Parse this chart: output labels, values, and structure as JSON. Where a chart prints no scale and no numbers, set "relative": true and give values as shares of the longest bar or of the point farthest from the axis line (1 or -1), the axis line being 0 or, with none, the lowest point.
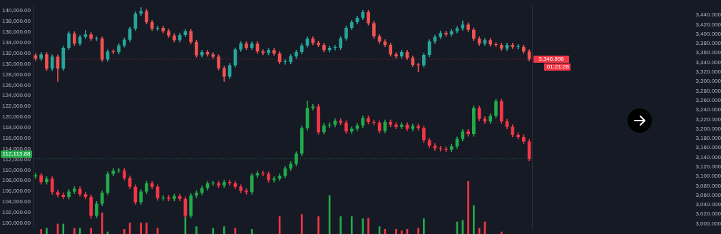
{
  "chart_data": [
    {
      "type": "candlestick",
      "categories": [
        null,
        null,
        null,
        null,
        null,
        null,
        null,
        null,
        null,
        null,
        null,
        null,
        null,
        null,
        null,
        null,
        null,
        null,
        null,
        null,
        null,
        null,
        null,
        null,
        null,
        null,
        null,
        null,
        null,
        null,
        null,
        null,
        null,
        null,
        null,
        null,
        null,
        null,
        null,
        null,
        null,
        null,
        null,
        null,
        null,
        null,
        null,
        null,
        null,
        null,
        null,
        null,
        null,
        null,
        null,
        null,
        null,
        null,
        null,
        null,
        null,
        null,
        null,
        null,
        null,
        null,
        null,
        null,
        null,
        null,
        null,
        null,
        null,
        null,
        null,
        null,
        null,
        null,
        null,
        null,
        null,
        null,
        null,
        null,
        null,
        null,
        null,
        null,
        null,
        null
      ],
      "ylim": [
        99000,
        141000
      ],
      "yticks": [
        {
          "value": 100000,
          "label": "100,000.00"
        },
        {
          "value": 102000,
          "label": "102,000.00"
        },
        {
          "value": 104000,
          "label": "104,000.00"
        },
        {
          "value": 106000,
          "label": "106,000.00"
        },
        {
          "value": 108000,
          "label": "108,000.00"
        },
        {
          "value": 110000,
          "label": "110,000.00"
        },
        {
          "value": 112000,
          "label": "112,000.00"
        },
        {
          "value": 114000,
          "label": "114,000.00"
        },
        {
          "value": 116000,
          "label": "116,000.00"
        },
        {
          "value": 118000,
          "label": "118,000.00"
        },
        {
          "value": 120000,
          "label": "120,000.00"
        },
        {
          "value": 122000,
          "label": "122,000.00"
        },
        {
          "value": 124000,
          "label": "124,000.00"
        },
        {
          "value": 126000,
          "label": "126,000.00"
        },
        {
          "value": 128000,
          "label": "128,000.00"
        },
        {
          "value": 130000,
          "label": "130,000.00"
        },
        {
          "value": 132000,
          "label": "132,000.00"
        },
        {
          "value": 134000,
          "label": "134,000.00"
        },
        {
          "value": 136000,
          "label": "136,000.00"
        },
        {
          "value": 138000,
          "label": "138,000.00"
        },
        {
          "value": 140000,
          "label": "140,000.00"
        }
      ],
      "y2lim": [
        2990,
        3460
      ],
      "y2ticks": [
        {
          "value": 3000,
          "label": "3,000.000"
        },
        {
          "value": 3020,
          "label": "3,020.000"
        },
        {
          "value": 3040,
          "label": "3,040.000"
        },
        {
          "value": 3060,
          "label": "3,060.000"
        },
        {
          "value": 3080,
          "label": "3,080.000"
        },
        {
          "value": 3100,
          "label": "3,100.000"
        },
        {
          "value": 3120,
          "label": "3,120.000"
        },
        {
          "value": 3140,
          "label": "3,140.000"
        },
        {
          "value": 3160,
          "label": "3,160.000"
        },
        {
          "value": 3180,
          "label": "3,180.000"
        },
        {
          "value": 3200,
          "label": "3,200.000"
        },
        {
          "value": 3220,
          "label": "3,220.000"
        },
        {
          "value": 3240,
          "label": "3,240.000"
        },
        {
          "value": 3260,
          "label": "3,260.000"
        },
        {
          "value": 3280,
          "label": "3,280.000"
        },
        {
          "value": 3300,
          "label": "3,300.000"
        },
        {
          "value": 3320,
          "label": "3,320.000"
        },
        {
          "value": 3340,
          "label": "3,340.000"
        },
        {
          "value": 3360,
          "label": "3,360.000"
        },
        {
          "value": 3380,
          "label": "3,380.000"
        },
        {
          "value": 3400,
          "label": "3,400.000"
        },
        {
          "value": 3420,
          "label": "3,420.000"
        },
        {
          "value": 3440,
          "label": "3,440.000"
        }
      ],
      "ref_lines": [
        {
          "axis": "y",
          "value": 112113.88,
          "label": "112,113.88",
          "color": "#22ab4a"
        },
        {
          "axis": "y2",
          "value": 3346.898,
          "label": "3,346.898",
          "color": "#f23645"
        }
      ],
      "annotations": [
        "01:21:28"
      ],
      "series": [
        {
          "type": "candlestick",
          "axis": "y2",
          "colors": [
            "#ef5350",
            "#26a69a",
            "#ef5350",
            "#26a69a",
            "#ef5350",
            "#26a69a",
            "#26a69a",
            "#ef5350",
            "#26a69a",
            "#26a69a",
            "#ef5350",
            "#26a69a",
            "#ef5350",
            "#26a69a",
            "#ef5350",
            "#26a69a",
            "#26a69a",
            "#26a69a",
            "#26a69a",
            "#26a69a",
            "#ef5350",
            "#ef5350",
            "#26a69a",
            "#ef5350",
            "#ef5350",
            "#ef5350",
            "#26a69a",
            "#26a69a",
            "#ef5350",
            "#ef5350",
            "#26a69a",
            "#ef5350",
            "#ef5350",
            "#ef5350",
            "#ef5350",
            "#26a69a",
            "#26a69a",
            "#26a69a",
            "#ef5350",
            "#26a69a",
            "#ef5350",
            "#ef5350",
            "#26a69a",
            "#ef5350",
            "#ef5350",
            "#26a69a",
            "#26a69a",
            "#26a69a",
            "#26a69a",
            "#26a69a",
            "#ef5350",
            "#ef5350",
            "#ef5350",
            "#26a69a",
            "#26a69a",
            "#26a69a",
            "#26a69a",
            "#26a69a",
            "#26a69a",
            "#26a69a",
            "#ef5350",
            "#ef5350",
            "#ef5350",
            "#ef5350",
            "#ef5350",
            "#ef5350",
            "#26a69a",
            "#ef5350",
            "#ef5350",
            "#ef5350",
            "#26a69a",
            "#26a69a",
            "#26a69a",
            "#26a69a",
            "#ef5350",
            "#26a69a",
            "#26a69a",
            "#26a69a",
            "#ef5350",
            "#ef5350",
            "#ef5350",
            "#26a69a",
            "#ef5350",
            "#ef5350",
            "#ef5350",
            "#26a69a",
            "#ef5350",
            "#26a69a",
            "#ef5350",
            "#ef5350"
          ],
          "ohlc": [
            [
              3355,
              3359,
              3344,
              3348
            ],
            [
              3348,
              3361,
              3344,
              3357
            ],
            [
              3357,
              3361,
              3323,
              3327
            ],
            [
              3327,
              3356,
              3323,
              3352
            ],
            [
              3352,
              3356,
              3300,
              3327
            ],
            [
              3327,
              3375,
              3323,
              3371
            ],
            [
              3371,
              3405,
              3367,
              3401
            ],
            [
              3401,
              3405,
              3376,
              3380
            ],
            [
              3380,
              3398,
              3376,
              3394
            ],
            [
              3394,
              3408,
              3390,
              3399
            ],
            [
              3399,
              3403,
              3386,
              3390
            ],
            [
              3390,
              3394,
              3386,
              3390
            ],
            [
              3390,
              3394,
              3342,
              3346
            ],
            [
              3346,
              3367,
              3342,
              3363
            ],
            [
              3363,
              3367,
              3358,
              3362
            ],
            [
              3362,
              3380,
              3358,
              3376
            ],
            [
              3376,
              3392,
              3372,
              3388
            ],
            [
              3388,
              3415,
              3384,
              3411
            ],
            [
              3411,
              3447,
              3407,
              3443
            ],
            [
              3443,
              3456,
              3439,
              3448
            ],
            [
              3448,
              3452,
              3421,
              3425
            ],
            [
              3425,
              3429,
              3407,
              3411
            ],
            [
              3411,
              3417,
              3407,
              3413
            ],
            [
              3413,
              3417,
              3402,
              3406
            ],
            [
              3406,
              3410,
              3393,
              3397
            ],
            [
              3397,
              3401,
              3383,
              3387
            ],
            [
              3387,
              3402,
              3383,
              3398
            ],
            [
              3398,
              3410,
              3394,
              3406
            ],
            [
              3406,
              3410,
              3379,
              3383
            ],
            [
              3383,
              3387,
              3351,
              3355
            ],
            [
              3355,
              3366,
              3351,
              3362
            ],
            [
              3362,
              3366,
              3353,
              3357
            ],
            [
              3357,
              3361,
              3348,
              3352
            ],
            [
              3352,
              3356,
              3324,
              3328
            ],
            [
              3328,
              3332,
              3300,
              3310
            ],
            [
              3310,
              3338,
              3306,
              3334
            ],
            [
              3334,
              3371,
              3330,
              3367
            ],
            [
              3367,
              3384,
              3363,
              3380
            ],
            [
              3380,
              3384,
              3367,
              3371
            ],
            [
              3371,
              3384,
              3367,
              3380
            ],
            [
              3380,
              3384,
              3359,
              3363
            ],
            [
              3363,
              3367,
              3356,
              3360
            ],
            [
              3360,
              3370,
              3356,
              3366
            ],
            [
              3366,
              3370,
              3355,
              3359
            ],
            [
              3359,
              3363,
              3337,
              3341
            ],
            [
              3341,
              3346,
              3336,
              3341
            ],
            [
              3341,
              3357,
              3337,
              3353
            ],
            [
              3353,
              3366,
              3349,
              3362
            ],
            [
              3362,
              3380,
              3358,
              3376
            ],
            [
              3376,
              3394,
              3372,
              3390
            ],
            [
              3390,
              3394,
              3377,
              3381
            ],
            [
              3381,
              3385,
              3373,
              3377
            ],
            [
              3377,
              3381,
              3362,
              3366
            ],
            [
              3366,
              3375,
              3362,
              3371
            ],
            [
              3371,
              3376,
              3366,
              3371
            ],
            [
              3371,
              3395,
              3367,
              3391
            ],
            [
              3391,
              3417,
              3387,
              3413
            ],
            [
              3413,
              3429,
              3409,
              3425
            ],
            [
              3425,
              3438,
              3421,
              3434
            ],
            [
              3434,
              3450,
              3430,
              3446
            ],
            [
              3446,
              3450,
              3419,
              3423
            ],
            [
              3423,
              3427,
              3391,
              3395
            ],
            [
              3395,
              3399,
              3380,
              3384
            ],
            [
              3384,
              3388,
              3373,
              3377
            ],
            [
              3377,
              3381,
              3353,
              3357
            ],
            [
              3357,
              3361,
              3349,
              3353
            ],
            [
              3353,
              3366,
              3349,
              3362
            ],
            [
              3362,
              3366,
              3346,
              3350
            ],
            [
              3350,
              3354,
              3331,
              3335
            ],
            [
              3335,
              3339,
              3320,
              3334
            ],
            [
              3334,
              3360,
              3330,
              3356
            ],
            [
              3356,
              3388,
              3352,
              3384
            ],
            [
              3384,
              3398,
              3380,
              3394
            ],
            [
              3394,
              3406,
              3390,
              3402
            ],
            [
              3402,
              3406,
              3395,
              3399
            ],
            [
              3399,
              3410,
              3395,
              3406
            ],
            [
              3406,
              3416,
              3402,
              3412
            ],
            [
              3412,
              3428,
              3408,
              3420
            ],
            [
              3420,
              3424,
              3405,
              3409
            ],
            [
              3409,
              3413,
              3386,
              3390
            ],
            [
              3390,
              3394,
              3376,
              3380
            ],
            [
              3380,
              3391,
              3376,
              3387
            ],
            [
              3387,
              3391,
              3374,
              3378
            ],
            [
              3378,
              3382,
              3373,
              3377
            ],
            [
              3377,
              3381,
              3365,
              3369
            ],
            [
              3369,
              3381,
              3365,
              3377
            ],
            [
              3377,
              3381,
              3369,
              3373
            ],
            [
              3373,
              3378,
              3368,
              3373
            ],
            [
              3373,
              3377,
              3359,
              3363
            ],
            [
              3363,
              3367,
              3343,
              3346.898
            ]
          ]
        },
        {
          "type": "candlestick",
          "axis": "y",
          "colors": [
            "#22ab4a",
            "#f23645",
            "#22ab4a",
            "#f23645",
            "#f23645",
            "#f23645",
            "#22ab4a",
            "#22ab4a",
            "#f23645",
            "#f23645",
            "#f23645",
            "#22ab4a",
            "#22ab4a",
            "#22ab4a",
            "#22ab4a",
            "#22ab4a",
            "#f23645",
            "#f23645",
            "#f23645",
            "#22ab4a",
            "#22ab4a",
            "#f23645",
            "#f23645",
            "#22ab4a",
            "#f23645",
            "#22ab4a",
            "#f23645",
            "#f23645",
            "#22ab4a",
            "#22ab4a",
            "#22ab4a",
            "#22ab4a",
            "#22ab4a",
            "#f23645",
            "#22ab4a",
            "#f23645",
            "#f23645",
            "#f23645",
            "#f23645",
            "#22ab4a",
            "#22ab4a",
            "#f23645",
            "#f23645",
            "#22ab4a",
            "#22ab4a",
            "#22ab4a",
            "#22ab4a",
            "#22ab4a",
            "#22ab4a",
            "#22ab4a",
            "#22ab4a",
            "#f23645",
            "#22ab4a",
            "#22ab4a",
            "#22ab4a",
            "#f23645",
            "#f23645",
            "#22ab4a",
            "#22ab4a",
            "#22ab4a",
            "#f23645",
            "#f23645",
            "#f23645",
            "#22ab4a",
            "#f23645",
            "#f23645",
            "#22ab4a",
            "#f23645",
            "#22ab4a",
            "#f23645",
            "#f23645",
            "#f23645",
            "#f23645",
            "#f23645",
            "#f23645",
            "#22ab4a",
            "#22ab4a",
            "#22ab4a",
            "#f23645",
            "#22ab4a",
            "#f23645",
            "#f23645",
            "#22ab4a",
            "#22ab4a",
            "#f23645",
            "#f23645",
            "#f23645",
            "#f23645",
            "#f23645",
            "#f23645"
          ],
          "ohlc": [
            [
              108800,
              109410,
              108400,
              109010
            ],
            [
              109010,
              109410,
              107340,
              107740
            ],
            [
              107740,
              108780,
              107340,
              108380
            ],
            [
              108380,
              108780,
              105440,
              105840
            ],
            [
              105840,
              106240,
              104930,
              105330
            ],
            [
              105330,
              105730,
              104550,
              104950
            ],
            [
              104950,
              106360,
              104550,
              105960
            ],
            [
              105960,
              106870,
              105560,
              106470
            ],
            [
              106470,
              106870,
              105060,
              105460
            ],
            [
              105460,
              105860,
              104550,
              104950
            ],
            [
              104950,
              105350,
              100900,
              101390
            ],
            [
              101390,
              104080,
              100990,
              103680
            ],
            [
              103680,
              106110,
              103280,
              105710
            ],
            [
              105710,
              109670,
              105310,
              109270
            ],
            [
              109270,
              110300,
              108870,
              109900
            ],
            [
              109900,
              110300,
              109500,
              109900
            ],
            [
              109900,
              110300,
              108100,
              108500
            ],
            [
              108500,
              108900,
              106450,
              106850
            ],
            [
              106850,
              107250,
              103530,
              103930
            ],
            [
              103930,
              106360,
              103530,
              105960
            ],
            [
              105960,
              107890,
              105560,
              107490
            ],
            [
              107490,
              107890,
              106450,
              106850
            ],
            [
              106850,
              107250,
              104290,
              104690
            ],
            [
              104690,
              105220,
              104290,
              104820
            ],
            [
              104820,
              105220,
              104170,
              104570
            ],
            [
              104570,
              105480,
              104170,
              105080
            ],
            [
              105080,
              105480,
              104170,
              104570
            ],
            [
              104570,
              104970,
              100990,
              101390
            ],
            [
              101390,
              105600,
              100990,
              105200
            ],
            [
              105200,
              106110,
              104800,
              105710
            ],
            [
              105710,
              107000,
              105310,
              106600
            ],
            [
              106600,
              107890,
              106200,
              107490
            ],
            [
              107490,
              107890,
              107090,
              107490
            ],
            [
              107490,
              107890,
              106710,
              107110
            ],
            [
              107110,
              108140,
              106710,
              107740
            ],
            [
              107740,
              108140,
              107090,
              107490
            ],
            [
              107490,
              107890,
              106450,
              106850
            ],
            [
              106850,
              107250,
              105690,
              106090
            ],
            [
              106090,
              106490,
              105440,
              105840
            ],
            [
              105840,
              109410,
              105440,
              109010
            ],
            [
              109010,
              109790,
              108610,
              109390
            ],
            [
              109390,
              109790,
              108870,
              109270
            ],
            [
              109270,
              109670,
              107720,
              108120
            ],
            [
              108120,
              108780,
              107720,
              108380
            ],
            [
              108380,
              109290,
              107980,
              108890
            ],
            [
              108890,
              110680,
              108490,
              110280
            ],
            [
              110280,
              111570,
              109880,
              111170
            ],
            [
              111170,
              113480,
              110770,
              113080
            ],
            [
              113080,
              118300,
              112680,
              117900
            ],
            [
              117900,
              123000,
              117500,
              121710
            ],
            [
              121710,
              122370,
              121310,
              121970
            ],
            [
              121970,
              122370,
              116740,
              117140
            ],
            [
              117140,
              118810,
              116740,
              118410
            ],
            [
              118410,
              118940,
              118010,
              118540
            ],
            [
              118540,
              119700,
              118140,
              119300
            ],
            [
              119300,
              119700,
              118520,
              118920
            ],
            [
              118920,
              119320,
              116870,
              117270
            ],
            [
              117270,
              118180,
              116870,
              117780
            ],
            [
              117780,
              118810,
              117380,
              118410
            ],
            [
              118410,
              120210,
              118010,
              119810
            ],
            [
              119810,
              120210,
              118650,
              119050
            ],
            [
              119050,
              119450,
              118520,
              118920
            ],
            [
              118920,
              119320,
              116990,
              117390
            ],
            [
              117390,
              119450,
              116990,
              119050
            ],
            [
              119050,
              119450,
              118140,
              118540
            ],
            [
              118540,
              118940,
              117760,
              118160
            ],
            [
              118160,
              118940,
              117760,
              118540
            ],
            [
              118540,
              118940,
              117380,
              117780
            ],
            [
              117780,
              118680,
              117380,
              118280
            ],
            [
              118280,
              118680,
              117500,
              117900
            ],
            [
              117900,
              118300,
              115220,
              115620
            ],
            [
              115620,
              116020,
              114200,
              114600
            ],
            [
              114600,
              115000,
              113690,
              114090
            ],
            [
              114090,
              114490,
              113570,
              113970
            ],
            [
              113970,
              114370,
              113440,
              113840
            ],
            [
              113840,
              114870,
              113440,
              114470
            ],
            [
              114470,
              116270,
              114070,
              115870
            ],
            [
              115870,
              117670,
              115470,
              117270
            ],
            [
              117270,
              117670,
              116360,
              116760
            ],
            [
              116760,
              122110,
              116360,
              121710
            ],
            [
              121710,
              122110,
              119280,
              119680
            ],
            [
              119680,
              120080,
              118770,
              119170
            ],
            [
              119170,
              120590,
              118770,
              120190
            ],
            [
              120190,
              123380,
              119790,
              122980
            ],
            [
              122980,
              123380,
              118770,
              119170
            ],
            [
              119170,
              119570,
              117760,
              118160
            ],
            [
              118160,
              118560,
              116230,
              116630
            ],
            [
              116630,
              117030,
              115850,
              116250
            ],
            [
              116250,
              116650,
              114960,
              115360
            ],
            [
              115360,
              115760,
              111700,
              112113.88
            ]
          ]
        }
      ]
    },
    {
      "type": "bar",
      "relative": true,
      "categories": [
        null,
        null,
        null,
        null,
        null,
        null,
        null,
        null,
        null,
        null,
        null,
        null,
        null,
        null,
        null,
        null,
        null,
        null,
        null,
        null,
        null,
        null,
        null,
        null,
        null,
        null,
        null,
        null,
        null,
        null,
        null,
        null,
        null,
        null,
        null,
        null,
        null,
        null,
        null,
        null,
        null,
        null,
        null,
        null,
        null,
        null,
        null,
        null,
        null,
        null,
        null,
        null,
        null,
        null,
        null,
        null,
        null,
        null,
        null,
        null,
        null,
        null,
        null,
        null,
        null,
        null,
        null,
        null,
        null,
        null,
        null,
        null,
        null,
        null,
        null,
        null,
        null,
        null,
        null,
        null,
        null,
        null,
        null,
        null,
        null,
        null,
        null,
        null,
        null,
        null
      ],
      "values": [
        null,
        0.09,
        0.11,
        null,
        0.19,
        0.19,
        null,
        0.11,
        0.11,
        null,
        0.11,
        null,
        0.4,
        0.04,
        null,
        null,
        0.09,
        0.21,
        null,
        0.21,
        0.21,
        null,
        0.11,
        null,
        null,
        null,
        null,
        0.33,
        null,
        0.14,
        null,
        null,
        0.11,
        null,
        0.14,
        null,
        0.11,
        null,
        null,
        0.09,
        null,
        null,
        null,
        null,
        0.33,
        null,
        null,
        null,
        0.37,
        null,
        null,
        0.33,
        null,
        0.73,
        null,
        0.33,
        null,
        0.33,
        null,
        0.29,
        0.3,
        null,
        0.14,
        0.09,
        null,
        0.09,
        0.06,
        0.09,
        null,
        0.11,
        0.29,
        null,
        null,
        null,
        null,
        null,
        0.23,
        0.26,
        1,
        0.54,
        0.11,
        0.23,
        null,
        null,
        0.04,
        null,
        null,
        null,
        null,
        null
      ],
      "colors": [
        null,
        "#f23645",
        "#22ab4a",
        null,
        "#f23645",
        "#22ab4a",
        null,
        "#f23645",
        "#22ab4a",
        null,
        "#f23645",
        null,
        "#f23645",
        "#22ab4a",
        null,
        null,
        "#f23645",
        "#f23645",
        null,
        "#f23645",
        "#f23645",
        null,
        "#f23645",
        null,
        null,
        null,
        null,
        "#22ab4a",
        null,
        "#22ab4a",
        null,
        null,
        "#22ab4a",
        null,
        "#22ab4a",
        null,
        "#f23645",
        null,
        null,
        "#22ab4a",
        null,
        null,
        null,
        null,
        "#f23645",
        null,
        null,
        null,
        "#f23645",
        null,
        null,
        "#f23645",
        null,
        "#22ab4a",
        null,
        "#22ab4a",
        null,
        "#22ab4a",
        null,
        "#22ab4a",
        "#f23645",
        null,
        "#22ab4a",
        "#f23645",
        null,
        "#f23645",
        "#f23645",
        "#f23645",
        null,
        "#f23645",
        "#22ab4a",
        null,
        null,
        null,
        null,
        null,
        "#22ab4a",
        "#22ab4a",
        "#f23645",
        "#22ab4a",
        "#f23645",
        "#f23645",
        null,
        null,
        "#f23645",
        null,
        null,
        null,
        null,
        null
      ]
    }
  ]
}
